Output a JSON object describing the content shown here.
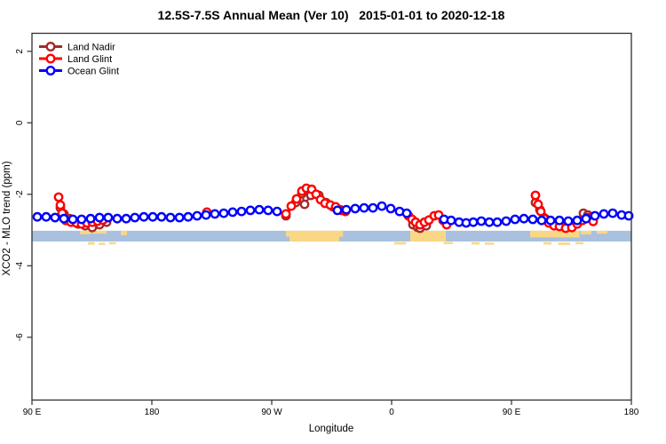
{
  "window": {
    "background": "#ffffff",
    "plot_border_color": "#2f2f2f"
  },
  "chart_data": {
    "type": "line",
    "title": "12.5S-7.5S Annual Mean (Ver 10)   2015-01-01 to 2020-12-18",
    "xlabel": "Longitude",
    "ylabel": "XCO2 - MLO trend (ppm)",
    "x_axis": {
      "note": "degrees along axis measured east from 90E; axis wraps the globe: 90E -> 180 -> 90W -> 0 -> 90E -> 180",
      "range": [
        0,
        450
      ],
      "ticks": [
        {
          "pos": 0,
          "label": "90 E"
        },
        {
          "pos": 90,
          "label": "180"
        },
        {
          "pos": 180,
          "label": "90 W"
        },
        {
          "pos": 270,
          "label": "0"
        },
        {
          "pos": 360,
          "label": "90 E"
        },
        {
          "pos": 450,
          "label": "180"
        }
      ]
    },
    "y_axis": {
      "unit": "ppm",
      "range": [
        -7.8,
        2.5
      ],
      "ticks": [
        {
          "value": 2,
          "label": "2"
        },
        {
          "value": 0,
          "label": "0"
        },
        {
          "value": -2,
          "label": "-2"
        },
        {
          "value": -4,
          "label": "-4"
        },
        {
          "value": -6,
          "label": "-6"
        }
      ]
    },
    "legend": {
      "position": "top-left"
    },
    "series": [
      {
        "name": "Land Nadir",
        "color": "#A52A2A",
        "segments": [
          [
            [
              21.3,
              -2.38
            ],
            [
              24,
              -2.55
            ],
            [
              28,
              -2.68
            ],
            [
              34.7,
              -2.83
            ],
            [
              40,
              -2.88
            ],
            [
              45.3,
              -2.93
            ],
            [
              50.7,
              -2.85
            ],
            [
              56,
              -2.78
            ]
          ],
          [
            [
              190.7,
              -2.6
            ],
            [
              198,
              -2.23
            ],
            [
              202.7,
              -1.98
            ],
            [
              204.7,
              -2.28
            ],
            [
              209.3,
              -2.03
            ],
            [
              215.3,
              -2.03
            ],
            [
              220.7,
              -2.23
            ],
            [
              226,
              -2.35
            ],
            [
              231.3,
              -2.43
            ]
          ],
          [
            [
              286,
              -2.85
            ],
            [
              289.3,
              -2.92
            ],
            [
              291.3,
              -2.95
            ],
            [
              296,
              -2.88
            ]
          ],
          [
            [
              378,
              -2.23
            ],
            [
              381.3,
              -2.43
            ],
            [
              394,
              -2.8
            ],
            [
              404.7,
              -2.83
            ],
            [
              410,
              -2.78
            ],
            [
              414,
              -2.53
            ],
            [
              417.3,
              -2.58
            ]
          ]
        ]
      },
      {
        "name": "Land Glint",
        "color": "#FF0000",
        "segments": [
          [
            [
              20,
              -2.08
            ],
            [
              21.3,
              -2.3
            ],
            [
              22.7,
              -2.53
            ],
            [
              25.3,
              -2.73
            ],
            [
              29.3,
              -2.78
            ],
            [
              33.3,
              -2.8
            ],
            [
              37.3,
              -2.83
            ],
            [
              41.3,
              -2.8
            ],
            [
              45.3,
              -2.78
            ],
            [
              49.3,
              -2.75
            ],
            [
              53.3,
              -2.72
            ]
          ],
          [
            [
              131.3,
              -2.5
            ]
          ],
          [
            [
              190.7,
              -2.55
            ],
            [
              194.7,
              -2.33
            ],
            [
              198.7,
              -2.13
            ],
            [
              202.7,
              -1.91
            ],
            [
              206,
              -1.83
            ],
            [
              210,
              -1.86
            ],
            [
              213.3,
              -2.0
            ],
            [
              216.7,
              -2.15
            ],
            [
              220,
              -2.25
            ],
            [
              224,
              -2.3
            ],
            [
              228,
              -2.35
            ],
            [
              232,
              -2.45
            ],
            [
              235.3,
              -2.48
            ]
          ],
          [
            [
              282.7,
              -2.6
            ],
            [
              285.3,
              -2.7
            ],
            [
              288,
              -2.78
            ],
            [
              291.3,
              -2.85
            ],
            [
              294.7,
              -2.78
            ],
            [
              298,
              -2.72
            ],
            [
              302,
              -2.6
            ],
            [
              305.3,
              -2.58
            ],
            [
              308.7,
              -2.73
            ],
            [
              311.3,
              -2.85
            ]
          ],
          [
            [
              378,
              -2.03
            ],
            [
              380,
              -2.28
            ],
            [
              382,
              -2.48
            ],
            [
              384.7,
              -2.68
            ],
            [
              388,
              -2.8
            ],
            [
              392,
              -2.88
            ],
            [
              396,
              -2.9
            ],
            [
              400.7,
              -2.95
            ],
            [
              405.3,
              -2.93
            ],
            [
              409.3,
              -2.83
            ],
            [
              413.3,
              -2.73
            ],
            [
              417.3,
              -2.65
            ],
            [
              421.3,
              -2.76
            ]
          ]
        ]
      },
      {
        "name": "Ocean Glint",
        "color": "#0000FF",
        "segments": [
          [
            [
              4,
              -2.63
            ],
            [
              10.7,
              -2.63
            ],
            [
              17.3,
              -2.65
            ],
            [
              24,
              -2.68
            ],
            [
              30.7,
              -2.7
            ],
            [
              37.3,
              -2.7
            ],
            [
              44,
              -2.68
            ],
            [
              50.7,
              -2.65
            ],
            [
              57.3,
              -2.65
            ],
            [
              64,
              -2.68
            ],
            [
              70.7,
              -2.68
            ],
            [
              77.3,
              -2.65
            ],
            [
              84,
              -2.63
            ],
            [
              90.7,
              -2.63
            ],
            [
              97.3,
              -2.63
            ],
            [
              104,
              -2.65
            ],
            [
              110.7,
              -2.65
            ],
            [
              117.3,
              -2.63
            ],
            [
              124,
              -2.6
            ],
            [
              130.7,
              -2.58
            ],
            [
              137.3,
              -2.55
            ],
            [
              144,
              -2.53
            ],
            [
              150.7,
              -2.5
            ],
            [
              157.3,
              -2.48
            ],
            [
              164,
              -2.45
            ],
            [
              170.7,
              -2.43
            ],
            [
              177.3,
              -2.45
            ],
            [
              184,
              -2.48
            ]
          ],
          [
            [
              229.3,
              -2.45
            ],
            [
              236,
              -2.43
            ],
            [
              242.7,
              -2.4
            ],
            [
              249.3,
              -2.38
            ],
            [
              256,
              -2.38
            ],
            [
              262.7,
              -2.33
            ],
            [
              269.3,
              -2.4
            ],
            [
              276,
              -2.48
            ],
            [
              281.3,
              -2.53
            ]
          ],
          [
            [
              309.3,
              -2.7
            ],
            [
              314.7,
              -2.73
            ],
            [
              320.7,
              -2.78
            ],
            [
              326,
              -2.8
            ],
            [
              331.3,
              -2.78
            ],
            [
              337.3,
              -2.75
            ],
            [
              343.3,
              -2.78
            ],
            [
              349.3,
              -2.78
            ],
            [
              356,
              -2.75
            ],
            [
              362.7,
              -2.7
            ],
            [
              369.3,
              -2.68
            ],
            [
              376,
              -2.7
            ],
            [
              382.7,
              -2.73
            ],
            [
              389.3,
              -2.73
            ],
            [
              396,
              -2.73
            ],
            [
              402.7,
              -2.75
            ],
            [
              409.3,
              -2.73
            ],
            [
              416,
              -2.68
            ],
            [
              422.7,
              -2.6
            ],
            [
              429.3,
              -2.55
            ],
            [
              436,
              -2.53
            ],
            [
              442.7,
              -2.58
            ],
            [
              448,
              -2.6
            ]
          ]
        ]
      }
    ],
    "map_strip": {
      "description": "latitude-band map strip: ocean band with land patches",
      "ocean_color": "#A9C0DE",
      "land_color": "#FAD784",
      "top_ppm": -3.02,
      "bottom_ppm": -3.32,
      "land_patches": [
        {
          "from": 36,
          "to": 44,
          "top": 0,
          "h": 0.32
        },
        {
          "from": 45,
          "to": 56,
          "top": 0,
          "h": 0.27
        },
        {
          "from": 66.7,
          "to": 71.3,
          "top": 0,
          "h": 0.42
        },
        {
          "from": 42,
          "to": 47,
          "top": 1.06,
          "h": 0.24
        },
        {
          "from": 50,
          "to": 55,
          "top": 1.12,
          "h": 0.2
        },
        {
          "from": 58,
          "to": 63,
          "top": 1.06,
          "h": 0.2
        },
        {
          "from": 190.7,
          "to": 193.3,
          "top": 0,
          "h": 0.55
        },
        {
          "from": 193.3,
          "to": 230.7,
          "top": 0,
          "h": 1
        },
        {
          "from": 230.7,
          "to": 233.5,
          "top": 0,
          "h": 0.55
        },
        {
          "from": 272,
          "to": 281,
          "top": 1.06,
          "h": 0.22
        },
        {
          "from": 284,
          "to": 310.7,
          "top": 0,
          "h": 1
        },
        {
          "from": 309,
          "to": 316,
          "top": 1.05,
          "h": 0.2
        },
        {
          "from": 330,
          "to": 336,
          "top": 1.06,
          "h": 0.22
        },
        {
          "from": 340,
          "to": 347,
          "top": 1.1,
          "h": 0.2
        },
        {
          "from": 374,
          "to": 411,
          "top": 0,
          "h": 0.62
        },
        {
          "from": 412,
          "to": 420,
          "top": 0,
          "h": 0.34
        },
        {
          "from": 424,
          "to": 432,
          "top": 0,
          "h": 0.28
        },
        {
          "from": 384,
          "to": 390,
          "top": 1.06,
          "h": 0.22
        },
        {
          "from": 395,
          "to": 404,
          "top": 1.1,
          "h": 0.22
        },
        {
          "from": 408,
          "to": 414,
          "top": 1.06,
          "h": 0.2
        }
      ]
    }
  }
}
